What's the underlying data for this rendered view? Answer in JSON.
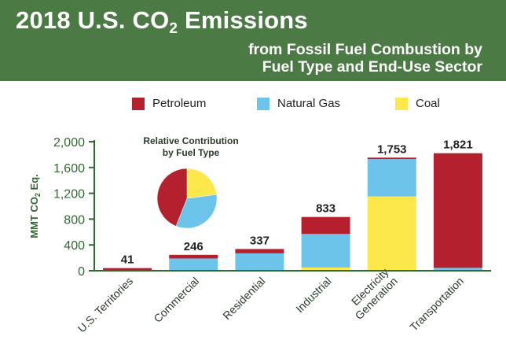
{
  "header": {
    "title_main": "2018 U.S. CO",
    "title_sub": "2",
    "title_end": " Emissions",
    "subtitle_line1": "from Fossil Fuel Combustion by",
    "subtitle_line2": "Fuel Type and End-Use Sector"
  },
  "colors": {
    "header_bg": "#4c7a44",
    "petroleum": "#b5202e",
    "natural_gas": "#6cc4ea",
    "coal": "#fde84b",
    "axis": "#2f6a2f"
  },
  "legend": [
    {
      "label": "Petroleum",
      "color": "#b5202e"
    },
    {
      "label": "Natural Gas",
      "color": "#6cc4ea"
    },
    {
      "label": "Coal",
      "color": "#fde84b"
    }
  ],
  "chart_data": [
    {
      "type": "bar",
      "stacked": true,
      "ylabel_main": "MMT CO",
      "ylabel_sub": "2",
      "ylabel_end": " Eq.",
      "ylim": [
        0,
        2000
      ],
      "yticks": [
        0,
        400,
        800,
        1200,
        1600,
        2000
      ],
      "ytick_labels": [
        "0",
        "400",
        "800",
        "1,200",
        "1,600",
        "2,000"
      ],
      "categories": [
        "U.S. Territories",
        "Commercial",
        "Residential",
        "Industrial",
        "Electricity Generation",
        "Transportation"
      ],
      "category_lines": [
        [
          "U.S. Territories"
        ],
        [
          "Commercial"
        ],
        [
          "Residential"
        ],
        [
          "Industrial"
        ],
        [
          "Electricity",
          "Generation"
        ],
        [
          "Transportation"
        ]
      ],
      "totals": [
        41,
        246,
        337,
        833,
        1753,
        1821
      ],
      "total_labels": [
        "41",
        "246",
        "337",
        "833",
        "1,753",
        "1,821"
      ],
      "series": [
        {
          "name": "Coal",
          "color": "#fde84b",
          "values": [
            0,
            0,
            0,
            50,
            1152,
            0
          ]
        },
        {
          "name": "Natural Gas",
          "color": "#6cc4ea",
          "values": [
            5,
            190,
            270,
            520,
            578,
            45
          ]
        },
        {
          "name": "Petroleum",
          "color": "#b5202e",
          "values": [
            36,
            56,
            67,
            263,
            23,
            1776
          ]
        }
      ],
      "legend_position": "top",
      "grid": false
    },
    {
      "type": "pie",
      "title_line1": "Relative Contribution",
      "title_line2": "by Fuel Type",
      "slices": [
        {
          "name": "Coal",
          "value": 23,
          "color": "#fde84b"
        },
        {
          "name": "Natural Gas",
          "value": 33,
          "color": "#6cc4ea"
        },
        {
          "name": "Petroleum",
          "value": 44,
          "color": "#b5202e"
        }
      ]
    }
  ]
}
